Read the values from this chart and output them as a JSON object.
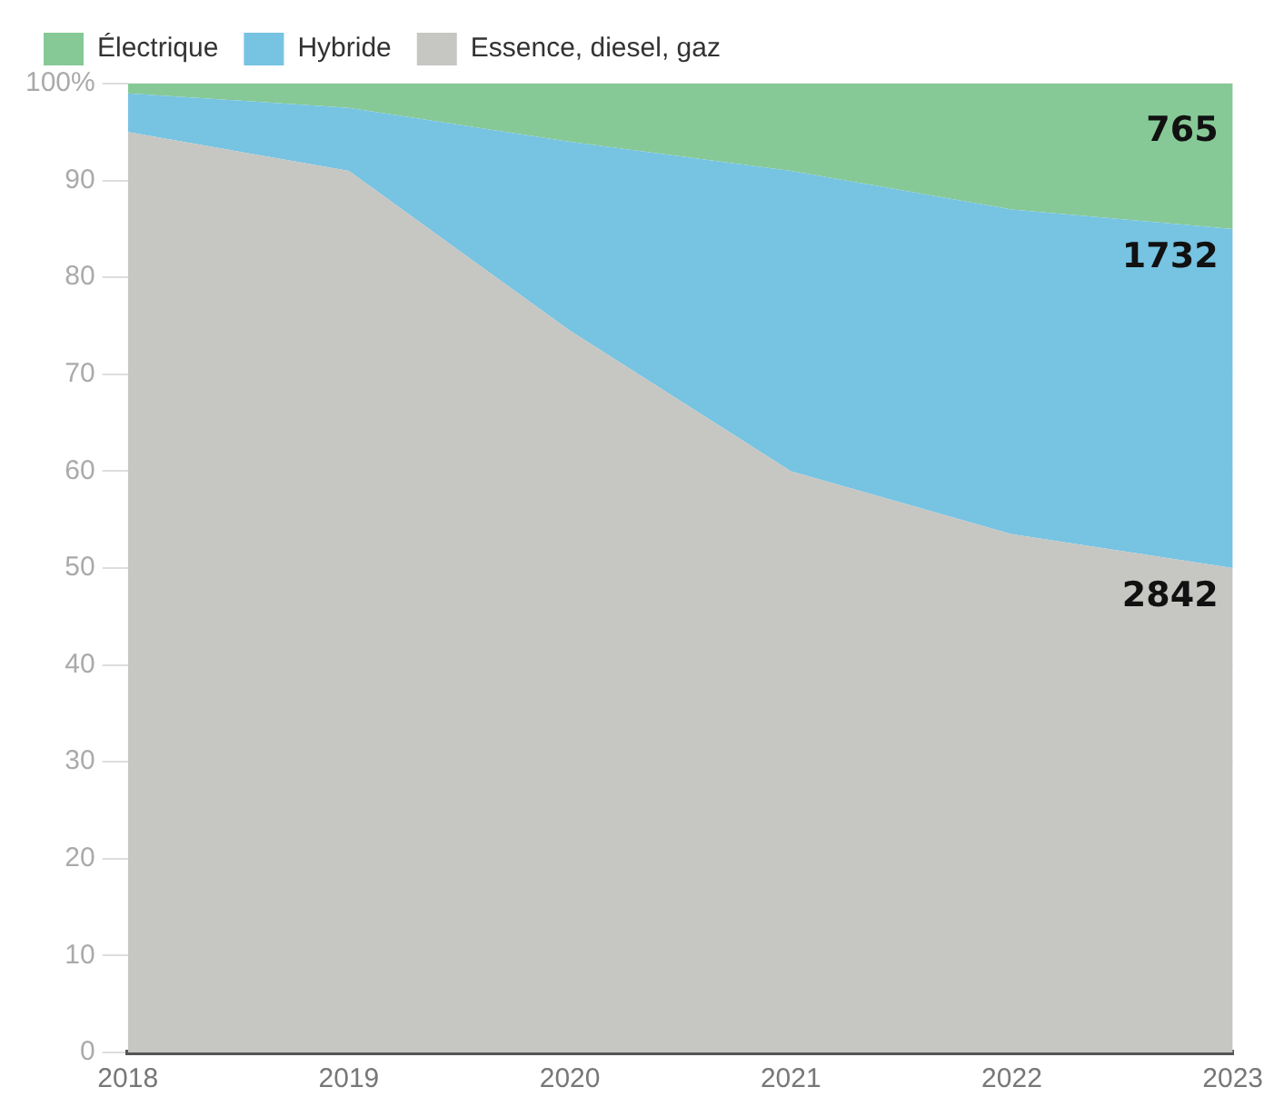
{
  "chart_data": {
    "type": "area",
    "stacked": true,
    "categories": [
      "2018",
      "2019",
      "2020",
      "2021",
      "2022",
      "2023"
    ],
    "series": [
      {
        "name": "Essence, diesel, gaz",
        "color": "#c6c6c2",
        "values": [
          95,
          91,
          74.5,
          60,
          53.5,
          50
        ]
      },
      {
        "name": "Hybride",
        "color": "#76c3e2",
        "values": [
          4,
          6.5,
          19.5,
          31,
          33.5,
          35
        ]
      },
      {
        "name": "Électrique",
        "color": "#86c996",
        "values": [
          1,
          2.5,
          6,
          9,
          13,
          15
        ]
      }
    ],
    "ylim": [
      0,
      100
    ],
    "yticks": [
      0,
      10,
      20,
      30,
      40,
      50,
      60,
      70,
      80,
      90,
      {
        "value": 100,
        "label": "100%"
      }
    ],
    "grid": "y",
    "legend": "top left",
    "annotations": [
      {
        "text": "765",
        "x": "2023",
        "y": 95
      },
      {
        "text": "1732",
        "x": "2023",
        "y": 82
      },
      {
        "text": "2842",
        "x": "2023",
        "y": 47
      }
    ]
  }
}
